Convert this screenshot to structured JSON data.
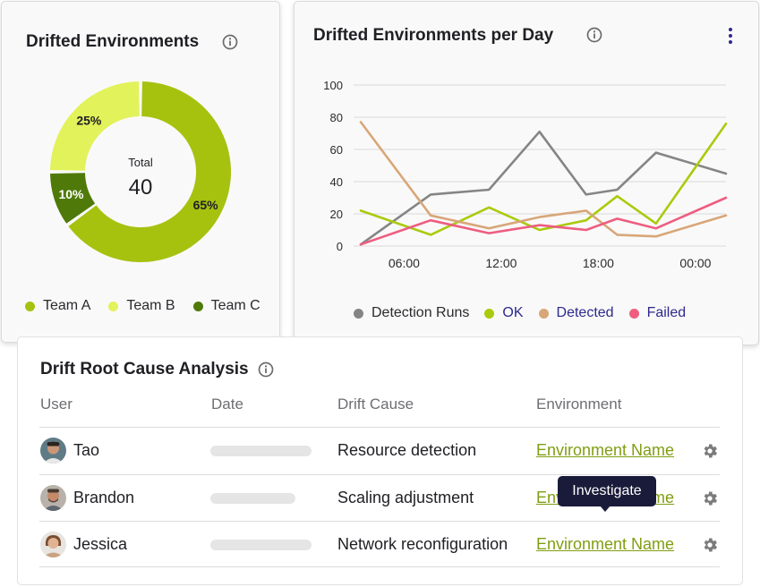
{
  "donut_card": {
    "title": "Drifted Environments",
    "center_label": "Total",
    "center_value": "40",
    "segments": [
      {
        "name": "Team A",
        "label": "65%",
        "percent": 65,
        "color": "#a6c20f"
      },
      {
        "name": "Team B",
        "label": "25%",
        "percent": 25,
        "color": "#e2f25a"
      },
      {
        "name": "Team C",
        "label": "10%",
        "percent": 10,
        "color": "#4f7a0a"
      }
    ],
    "legend": [
      "Team A",
      "Team B",
      "Team C"
    ],
    "info_icon": "info-icon"
  },
  "line_card": {
    "title": "Drifted Environments per Day",
    "info_icon": "info-icon",
    "menu_icon": "kebab-menu-icon"
  },
  "chart_data": {
    "type": "line",
    "title": "Drifted Environments per Day",
    "xlabel": "",
    "ylabel": "",
    "x": [
      0,
      1,
      2,
      3,
      4,
      5,
      6,
      7,
      8
    ],
    "x_tick_labels": [
      "06:00",
      "12:00",
      "18:00",
      "00:00"
    ],
    "x_tick_positions": [
      1,
      3.5,
      6,
      8.5
    ],
    "yticks": [
      0,
      20,
      40,
      60,
      80,
      100
    ],
    "ylim": [
      0,
      100
    ],
    "grid": "horizontal",
    "legend_position": "bottom",
    "series": [
      {
        "name": "Detection Runs",
        "color": "#858585",
        "x": [
          0,
          1.8,
          3.3,
          4.6,
          5.8,
          6.6,
          7.6,
          9.4
        ],
        "values": [
          1,
          32,
          35,
          71,
          32,
          35,
          58,
          45
        ]
      },
      {
        "name": "OK",
        "color": "#a9cb0e",
        "x": [
          0,
          1.8,
          3.3,
          4.6,
          5.8,
          6.6,
          7.6,
          9.4
        ],
        "values": [
          22,
          7,
          24,
          10,
          16,
          31,
          14,
          76
        ]
      },
      {
        "name": "Detected",
        "color": "#d7a779",
        "x": [
          0,
          1.8,
          3.3,
          4.6,
          5.8,
          6.6,
          7.6,
          9.4
        ],
        "values": [
          77,
          19,
          11,
          18,
          22,
          7,
          6,
          19
        ]
      },
      {
        "name": "Failed",
        "color": "#ee5d80",
        "x": [
          0,
          1.8,
          3.3,
          4.6,
          5.8,
          6.6,
          7.6,
          9.4
        ],
        "values": [
          1,
          16,
          8,
          13,
          10,
          17,
          11,
          30
        ]
      }
    ]
  },
  "table_card": {
    "title": "Drift Root Cause Analysis",
    "columns": [
      "User",
      "Date",
      "Drift Cause",
      "Environment"
    ],
    "rows": [
      {
        "user": "Tao",
        "date_bar": 0.75,
        "cause": "Resource detection",
        "environment": "Environment Name"
      },
      {
        "user": "Brandon",
        "date_bar": 0.63,
        "cause": "Scaling adjustment",
        "environment": "Environment Name"
      },
      {
        "user": "Jessica",
        "date_bar": 0.75,
        "cause": "Network reconfiguration",
        "environment": "Environment Name"
      }
    ],
    "tooltip": "Investigate"
  }
}
